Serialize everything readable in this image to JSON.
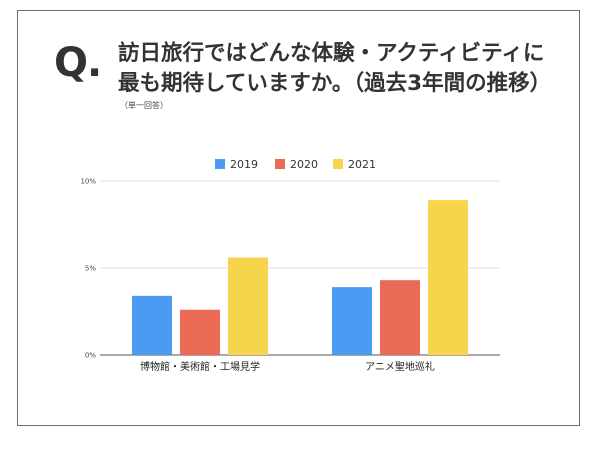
{
  "question": {
    "mark": "Q.",
    "title_line1": "訪日旅行ではどんな体験・アクティビティに",
    "title_line2": "最も期待していますか。（過去3年間の推移）",
    "note": "（単一回答）"
  },
  "chart_data": {
    "type": "bar",
    "categories": [
      "博物館・美術館・工場見学",
      "アニメ聖地巡礼"
    ],
    "series": [
      {
        "name": "2019",
        "values": [
          3.4,
          3.9
        ],
        "color": "#4c9bf2"
      },
      {
        "name": "2020",
        "values": [
          2.6,
          4.3
        ],
        "color": "#ec6b57"
      },
      {
        "name": "2021",
        "values": [
          5.6,
          8.9
        ],
        "color": "#f6d54c"
      }
    ],
    "ylim": [
      0,
      10
    ],
    "yticks": [
      {
        "value": 0,
        "label": "0%"
      },
      {
        "value": 5,
        "label": "5%"
      },
      {
        "value": 10,
        "label": "10%"
      }
    ],
    "grid": true,
    "legend": "top-center"
  }
}
